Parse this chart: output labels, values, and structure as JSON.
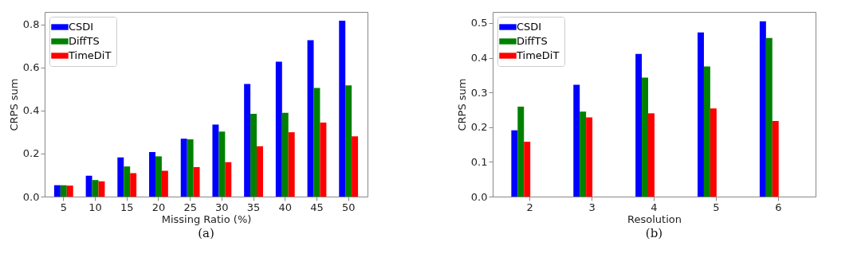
{
  "chart_data": [
    {
      "type": "bar",
      "xlabel": "Missing Ratio (%)",
      "ylabel": "CRPS sum",
      "annotations": [
        "(a)"
      ],
      "categories": [
        "5",
        "10",
        "15",
        "20",
        "25",
        "30",
        "35",
        "40",
        "45",
        "50"
      ],
      "series": [
        {
          "name": "CSDI",
          "color": "#0000ff",
          "values": [
            0.053,
            0.097,
            0.182,
            0.207,
            0.269,
            0.335,
            0.523,
            0.627,
            0.727,
            0.817
          ]
        },
        {
          "name": "DiffTS",
          "color": "#008000",
          "values": [
            0.053,
            0.077,
            0.14,
            0.187,
            0.266,
            0.302,
            0.385,
            0.389,
            0.505,
            0.517
          ]
        },
        {
          "name": "TimeDiT",
          "color": "#ff0000",
          "values": [
            0.051,
            0.071,
            0.109,
            0.12,
            0.137,
            0.16,
            0.234,
            0.299,
            0.344,
            0.28
          ]
        }
      ],
      "ylim": [
        0,
        0.858
      ],
      "yticks": [
        {
          "value": 0,
          "label": "0.0"
        },
        {
          "value": 0.2,
          "label": "0.2"
        },
        {
          "value": 0.4,
          "label": "0.4"
        },
        {
          "value": 0.6,
          "label": "0.6"
        },
        {
          "value": 0.8,
          "label": "0.8"
        }
      ],
      "legend": "top left",
      "grid": false
    },
    {
      "type": "bar",
      "xlabel": "Resolution",
      "ylabel": "CRPS sum",
      "annotations": [
        "(b)"
      ],
      "categories": [
        "2",
        "3",
        "4",
        "5",
        "6"
      ],
      "series": [
        {
          "name": "CSDI",
          "color": "#0000ff",
          "values": [
            0.191,
            0.322,
            0.411,
            0.473,
            0.505
          ]
        },
        {
          "name": "DiffTS",
          "color": "#008000",
          "values": [
            0.259,
            0.245,
            0.343,
            0.375,
            0.457
          ]
        },
        {
          "name": "TimeDiT",
          "color": "#ff0000",
          "values": [
            0.158,
            0.228,
            0.24,
            0.254,
            0.218
          ]
        }
      ],
      "ylim": [
        0,
        0.532
      ],
      "yticks": [
        {
          "value": 0,
          "label": "0.0"
        },
        {
          "value": 0.1,
          "label": "0.1"
        },
        {
          "value": 0.2,
          "label": "0.2"
        },
        {
          "value": 0.3,
          "label": "0.3"
        },
        {
          "value": 0.4,
          "label": "0.4"
        },
        {
          "value": 0.5,
          "label": "0.5"
        }
      ],
      "legend": "top left",
      "grid": false
    }
  ]
}
